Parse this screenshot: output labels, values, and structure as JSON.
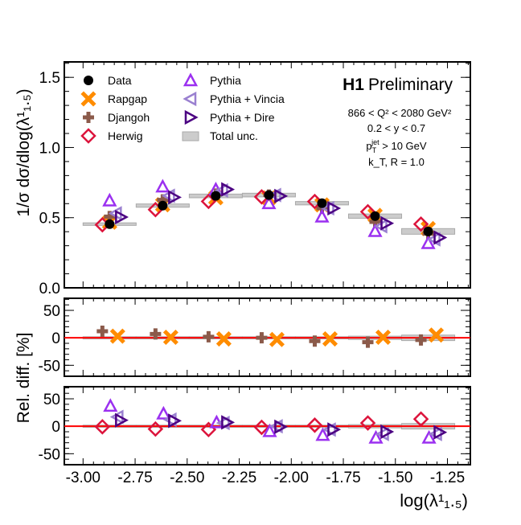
{
  "chart_data": {
    "type": "scatter",
    "title": "H1 Preliminary",
    "title_bold": "H1",
    "title_rest": "Preliminary",
    "annotations": [
      "866 < Q² < 2080 GeV²",
      "0.2 < y < 0.7",
      "p_T^jet > 10 GeV",
      "k_T, R = 1.0"
    ],
    "xlabel": "log(λ¹₁.₅)",
    "ylabel_main": "1/σ dσ/dlog(λ¹₁.₅)",
    "ylabel_ratio": "Rel. diff. [%]",
    "xlim": [
      -3.09,
      -1.14
    ],
    "ylim_main": [
      0,
      1.61
    ],
    "ylim_ratio": [
      -70,
      72
    ],
    "x_ticks": [
      "-3.00",
      "-2.75",
      "-2.50",
      "-2.25",
      "-2.00",
      "-1.75",
      "-1.50",
      "-1.25"
    ],
    "x_tick_values": [
      -3.0,
      -2.75,
      -2.5,
      -2.25,
      -2.0,
      -1.75,
      -1.5,
      -1.25
    ],
    "y_ticks_main": [
      "0.0",
      "0.5",
      "1.0",
      "1.5"
    ],
    "y_tick_values_main": [
      0,
      0.5,
      1.0,
      1.5
    ],
    "y_ticks_ratio": [
      "50",
      "0",
      "-50"
    ],
    "y_tick_values_ratio": [
      50,
      0,
      -50
    ],
    "bin_edges": [
      -3.0,
      -2.745,
      -2.49,
      -2.235,
      -1.98,
      -1.725,
      -1.47,
      -1.215
    ],
    "legend_placement": "top-left",
    "data": {
      "name": "Data",
      "values": [
        0.454,
        0.586,
        0.655,
        0.661,
        0.603,
        0.511,
        0.402
      ],
      "color": "#000000"
    },
    "total_unc_percent": [
      2,
      2,
      2,
      2,
      2,
      3,
      5
    ],
    "total_unc_label": "Total unc.",
    "series": [
      {
        "name": "Rapgap",
        "marker": "cross-x",
        "color": "#ff8c00",
        "values": [
          0.468,
          0.592,
          0.642,
          0.641,
          0.591,
          0.516,
          0.422
        ],
        "rel_diff": [
          3,
          1,
          -2,
          -3,
          -2,
          1,
          5
        ],
        "panel": 1
      },
      {
        "name": "Djangoh",
        "marker": "cross",
        "color": "#8b5a4a",
        "values": [
          0.508,
          0.627,
          0.668,
          0.661,
          0.567,
          0.47,
          0.386
        ],
        "rel_diff": [
          12,
          7,
          2,
          0,
          -6,
          -8,
          -4
        ],
        "panel": 1
      },
      {
        "name": "Herwig",
        "marker": "diamond",
        "color": "#dc143c",
        "values": [
          0.449,
          0.557,
          0.616,
          0.648,
          0.615,
          0.542,
          0.454
        ],
        "rel_diff": [
          -1,
          -5,
          -6,
          -2,
          2,
          6,
          13
        ],
        "panel": 2
      },
      {
        "name": "Pythia",
        "marker": "triangle-up",
        "color": "#9b30f0",
        "values": [
          0.622,
          0.721,
          0.701,
          0.602,
          0.507,
          0.404,
          0.318
        ],
        "rel_diff": [
          37,
          23,
          7,
          -9,
          -16,
          -21,
          -21
        ],
        "panel": 2
      },
      {
        "name": "Pythia + Vincia",
        "marker": "triangle-left",
        "color": "#9a80d0",
        "values": [
          0.531,
          0.656,
          0.694,
          0.661,
          0.567,
          0.439,
          0.346
        ],
        "rel_diff": [
          17,
          12,
          6,
          0,
          -6,
          -14,
          -14
        ],
        "panel": 2
      },
      {
        "name": "Pythia + Dire",
        "marker": "triangle-right",
        "color": "#4b0082",
        "values": [
          0.504,
          0.645,
          0.701,
          0.654,
          0.567,
          0.46,
          0.358
        ],
        "rel_diff": [
          11,
          10,
          7,
          -1,
          -6,
          -10,
          -11
        ],
        "panel": 2
      }
    ],
    "reference_line_color": "#ff0000"
  }
}
